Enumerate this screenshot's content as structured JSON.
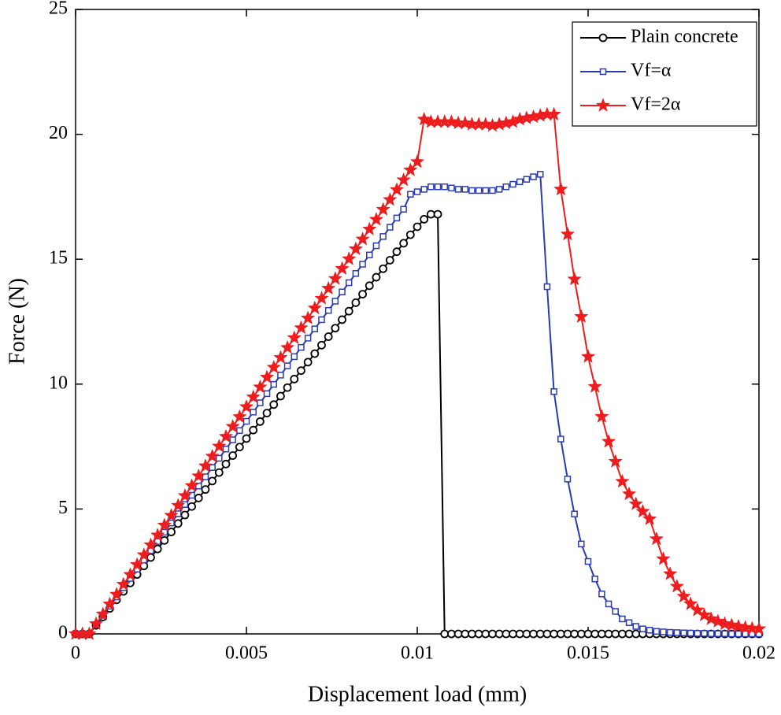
{
  "chart_data": {
    "type": "line",
    "xlabel": "Displacement load (mm)",
    "ylabel": "Force (N)",
    "x": [
      0,
      0.0002,
      0.0004,
      0.0006,
      0.0008,
      0.001,
      0.0012,
      0.0014,
      0.0016,
      0.0018,
      0.002,
      0.0022,
      0.0024,
      0.0026,
      0.0028,
      0.003,
      0.0032,
      0.0034,
      0.0036,
      0.0038,
      0.004,
      0.0042,
      0.0044,
      0.0046,
      0.0048,
      0.005,
      0.0052,
      0.0054,
      0.0056,
      0.0058,
      0.006,
      0.0062,
      0.0064,
      0.0066,
      0.0068,
      0.007,
      0.0072,
      0.0074,
      0.0076,
      0.0078,
      0.008,
      0.0082,
      0.0084,
      0.0086,
      0.0088,
      0.009,
      0.0092,
      0.0094,
      0.0096,
      0.0098,
      0.01,
      0.0102,
      0.0104,
      0.0106,
      0.0108,
      0.011,
      0.0112,
      0.0114,
      0.0116,
      0.0118,
      0.012,
      0.0122,
      0.0124,
      0.0126,
      0.0128,
      0.013,
      0.0132,
      0.0134,
      0.0136,
      0.0138,
      0.014,
      0.0142,
      0.0144,
      0.0146,
      0.0148,
      0.015,
      0.0152,
      0.0154,
      0.0156,
      0.0158,
      0.016,
      0.0162,
      0.0164,
      0.0166,
      0.0168,
      0.017,
      0.0172,
      0.0174,
      0.0176,
      0.0178,
      0.018,
      0.0182,
      0.0184,
      0.0186,
      0.0188,
      0.019,
      0.0192,
      0.0194,
      0.0196,
      0.0198,
      0.02
    ],
    "series": [
      {
        "name": "Plain concrete",
        "color": "#000000",
        "marker": "circle",
        "values": [
          0,
          0,
          0,
          0.34,
          0.68,
          1.02,
          1.36,
          1.7,
          2.04,
          2.38,
          2.72,
          3.06,
          3.4,
          3.74,
          4.08,
          4.42,
          4.76,
          5.1,
          5.44,
          5.78,
          6.12,
          6.46,
          6.8,
          7.14,
          7.48,
          7.82,
          8.16,
          8.5,
          8.84,
          9.18,
          9.52,
          9.86,
          10.2,
          10.54,
          10.88,
          11.22,
          11.56,
          11.9,
          12.24,
          12.58,
          12.92,
          13.26,
          13.6,
          13.94,
          14.28,
          14.62,
          14.96,
          15.3,
          15.64,
          15.98,
          16.3,
          16.6,
          16.8,
          16.8,
          0,
          0,
          0,
          0,
          0,
          0,
          0,
          0,
          0,
          0,
          0,
          0,
          0,
          0,
          0,
          0,
          0,
          0,
          0,
          0,
          0,
          0,
          0,
          0,
          0,
          0,
          0,
          0,
          0,
          0,
          0,
          0,
          0,
          0,
          0,
          0,
          0,
          0,
          0,
          0,
          0,
          0,
          0,
          0,
          0,
          0,
          0
        ]
      },
      {
        "name": "Vf=α",
        "color": "#2b3bb0",
        "marker": "square",
        "values": [
          0,
          0,
          0,
          0.37,
          0.74,
          1.11,
          1.48,
          1.85,
          2.22,
          2.59,
          2.96,
          3.33,
          3.7,
          4.07,
          4.44,
          4.81,
          5.18,
          5.55,
          5.92,
          6.29,
          6.66,
          7.03,
          7.4,
          7.77,
          8.14,
          8.51,
          8.88,
          9.25,
          9.62,
          9.99,
          10.36,
          10.73,
          11.1,
          11.47,
          11.84,
          12.21,
          12.58,
          12.95,
          13.32,
          13.69,
          14.06,
          14.43,
          14.8,
          15.17,
          15.54,
          15.91,
          16.28,
          16.65,
          17.0,
          17.6,
          17.7,
          17.8,
          17.9,
          17.9,
          17.9,
          17.85,
          17.8,
          17.8,
          17.75,
          17.75,
          17.75,
          17.75,
          17.8,
          17.9,
          18.0,
          18.1,
          18.2,
          18.3,
          18.4,
          13.9,
          9.7,
          7.8,
          6.2,
          4.8,
          3.6,
          2.9,
          2.2,
          1.6,
          1.2,
          0.9,
          0.6,
          0.45,
          0.3,
          0.2,
          0.15,
          0.1,
          0.08,
          0.06,
          0.05,
          0.04,
          0.03,
          0.02,
          0.02,
          0.01,
          0.01,
          0.01,
          0,
          0,
          0,
          0,
          0
        ]
      },
      {
        "name": "Vf=2α",
        "color": "#ee1c1c",
        "marker": "star",
        "values": [
          0,
          0,
          0,
          0.4,
          0.79,
          1.19,
          1.58,
          1.98,
          2.37,
          2.77,
          3.16,
          3.56,
          3.95,
          4.35,
          4.74,
          5.14,
          5.53,
          5.93,
          6.32,
          6.72,
          7.11,
          7.51,
          7.9,
          8.3,
          8.69,
          9.09,
          9.48,
          9.88,
          10.27,
          10.67,
          11.06,
          11.46,
          11.85,
          12.25,
          12.64,
          13.04,
          13.43,
          13.83,
          14.22,
          14.62,
          15.01,
          15.41,
          15.8,
          16.2,
          16.59,
          16.99,
          17.38,
          17.78,
          18.17,
          18.57,
          18.9,
          20.6,
          20.5,
          20.5,
          20.5,
          20.5,
          20.45,
          20.45,
          20.4,
          20.4,
          20.4,
          20.35,
          20.4,
          20.45,
          20.5,
          20.6,
          20.65,
          20.7,
          20.75,
          20.8,
          20.8,
          17.8,
          16.0,
          14.2,
          12.7,
          11.1,
          9.9,
          8.7,
          7.7,
          6.9,
          6.1,
          5.6,
          5.2,
          4.9,
          4.6,
          3.8,
          3.0,
          2.4,
          1.9,
          1.5,
          1.2,
          0.95,
          0.75,
          0.6,
          0.5,
          0.4,
          0.35,
          0.3,
          0.25,
          0.22,
          0.2
        ]
      }
    ],
    "xlim": [
      0,
      0.02
    ],
    "ylim": [
      0,
      25
    ],
    "xticks": [
      0,
      0.005,
      0.01,
      0.015,
      0.02
    ],
    "yticks": [
      0,
      5,
      10,
      15,
      20,
      25
    ],
    "grid": false,
    "legend": "top-right"
  }
}
